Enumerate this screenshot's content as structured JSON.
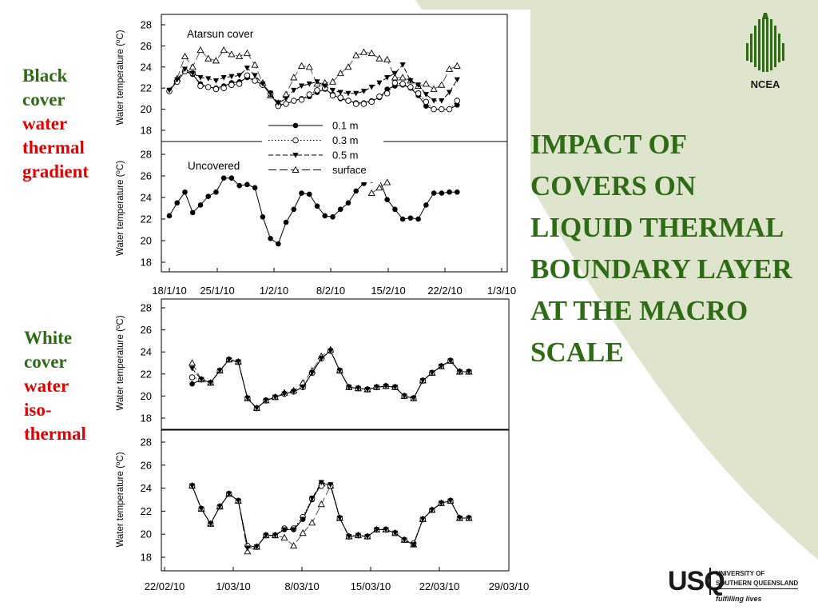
{
  "slide": {
    "title": "IMPACT OF COVERS ON LIQUID THERMAL BOUNDARY LAYER AT THE MACRO SCALE",
    "colors": {
      "title": "#2e6b15",
      "accent_red": "#e00000",
      "bg_green": "#dfe5cc"
    }
  },
  "labels": {
    "black": [
      {
        "text": "Black",
        "color": "green"
      },
      {
        "text": "cover",
        "color": "green"
      },
      {
        "text": "water",
        "color": "red"
      },
      {
        "text": "thermal",
        "color": "red"
      },
      {
        "text": "gradient",
        "color": "red"
      }
    ],
    "white": [
      {
        "text": "White",
        "color": "green"
      },
      {
        "text": "cover",
        "color": "green"
      },
      {
        "text": "water",
        "color": "red"
      },
      {
        "text": "iso-",
        "color": "red"
      },
      {
        "text": "thermal",
        "color": "red"
      }
    ]
  },
  "logos": {
    "ncea": {
      "text": "NCEA",
      "icon": "tree-lines-icon"
    },
    "usq": {
      "mark": "USQ",
      "line1": "UNIVERSITY OF",
      "line2": "SOUTHERN QUEENSLAND",
      "tagline": "fulfilling lives"
    }
  },
  "legend": {
    "entries": [
      {
        "label": "0.1 m",
        "marker": "filled-circle",
        "dash": "solid"
      },
      {
        "label": "0.3 m",
        "marker": "open-circle",
        "dash": "dotted"
      },
      {
        "label": "0.5 m",
        "marker": "filled-triangle-down",
        "dash": "dashed"
      },
      {
        "label": "surface",
        "marker": "open-triangle-up",
        "dash": "longdash"
      }
    ]
  },
  "chart_data": [
    {
      "type": "line",
      "panel": "black-top",
      "annotation": "Atarsun cover",
      "ylabel": "Water temperature (oC)",
      "ylim": [
        18,
        28
      ],
      "yticks": [
        18,
        20,
        22,
        24,
        26,
        28
      ],
      "xlim": [
        "18/1/10",
        "1/3/10"
      ],
      "series": [
        {
          "name": "0.1 m",
          "x": [
            0,
            1,
            2,
            3,
            4,
            5,
            6,
            7,
            8,
            9,
            10,
            11,
            12,
            13,
            14,
            15,
            16,
            17,
            18,
            19,
            20,
            21,
            22,
            23,
            24,
            25,
            26,
            27,
            28,
            29,
            30,
            31,
            32,
            33,
            34,
            35,
            36,
            37
          ],
          "y": [
            21.8,
            22.6,
            23.6,
            23.3,
            22.4,
            22.1,
            22.0,
            22.2,
            22.5,
            22.6,
            23.0,
            22.7,
            22.3,
            21.4,
            20.4,
            20.5,
            20.8,
            21.0,
            21.2,
            21.6,
            21.9,
            21.4,
            21.0,
            20.8,
            20.6,
            20.6,
            20.8,
            21.1,
            21.9,
            22.2,
            22.3,
            22.0,
            21.3,
            20.3,
            20.0,
            20.0,
            20.0,
            20.4
          ]
        },
        {
          "name": "0.3 m",
          "x": [
            0,
            1,
            2,
            3,
            4,
            5,
            6,
            7,
            8,
            9,
            10,
            11,
            12,
            13,
            14,
            15,
            16,
            17,
            18,
            19,
            20,
            21,
            22,
            23,
            24,
            25,
            26,
            27,
            28,
            29,
            30,
            31,
            32,
            33,
            34,
            35,
            36,
            37
          ],
          "y": [
            21.7,
            22.6,
            23.6,
            23.4,
            22.2,
            22.1,
            21.9,
            22.0,
            22.3,
            22.4,
            23.2,
            22.7,
            22.3,
            21.5,
            20.3,
            20.5,
            20.8,
            20.9,
            21.4,
            21.8,
            22.0,
            21.3,
            21.1,
            20.8,
            20.5,
            20.5,
            20.7,
            21.2,
            21.5,
            22.5,
            22.4,
            22.1,
            21.5,
            20.7,
            20.0,
            20.0,
            20.0,
            20.8
          ]
        },
        {
          "name": "0.5 m",
          "x": [
            0,
            1,
            2,
            3,
            4,
            5,
            6,
            7,
            8,
            9,
            10,
            11,
            12,
            13,
            14,
            15,
            16,
            17,
            18,
            19,
            20,
            21,
            22,
            23,
            24,
            25,
            26,
            27,
            28,
            29,
            30,
            31,
            32,
            33,
            34,
            35,
            36,
            37
          ],
          "y": [
            21.8,
            22.8,
            23.8,
            23.4,
            23.0,
            22.9,
            22.7,
            23.0,
            23.1,
            23.2,
            23.9,
            23.2,
            22.4,
            21.5,
            20.6,
            21.0,
            21.8,
            22.2,
            22.4,
            22.6,
            22.2,
            21.8,
            21.6,
            21.5,
            21.5,
            21.7,
            22.1,
            22.5,
            23.0,
            23.4,
            24.2,
            22.7,
            22.3,
            21.4,
            20.8,
            20.8,
            21.6,
            22.8
          ]
        },
        {
          "name": "surface",
          "x": [
            1,
            2,
            3,
            4,
            5,
            6,
            7,
            8,
            9,
            10,
            11,
            12,
            13,
            14,
            15,
            16,
            17,
            18,
            19,
            20,
            21,
            22,
            23,
            24,
            25,
            26,
            27,
            28,
            29,
            30,
            31,
            32,
            33,
            34,
            35,
            36,
            37
          ],
          "y": [
            22.9,
            25.0,
            24.0,
            25.6,
            24.8,
            24.6,
            25.6,
            25.2,
            25.0,
            25.3,
            24.2,
            22.5,
            21.3,
            20.6,
            21.4,
            23.0,
            24.1,
            24.0,
            22.4,
            22.5,
            22.6,
            23.4,
            24.0,
            25.1,
            25.4,
            25.3,
            24.8,
            24.7,
            23.0,
            23.0,
            22.7,
            22.2,
            22.4,
            21.9,
            22.3,
            23.8,
            24.1
          ]
        }
      ]
    },
    {
      "type": "line",
      "panel": "black-bottom",
      "annotation": "Uncovered",
      "ylabel": "Water temperature (oC)",
      "ylim": [
        18,
        28
      ],
      "yticks": [
        18,
        20,
        22,
        24,
        26,
        28
      ],
      "xlim": [
        "18/1/10",
        "1/3/10"
      ],
      "xticks": [
        "18/1/10",
        "25/1/10",
        "1/2/10",
        "8/2/10",
        "15/2/10",
        "22/2/10",
        "1/3/10"
      ],
      "series": [
        {
          "name": "all depths",
          "x": [
            0,
            1,
            2,
            3,
            4,
            5,
            6,
            7,
            8,
            9,
            10,
            11,
            12,
            13,
            14,
            15,
            16,
            17,
            18,
            19,
            20,
            21,
            22,
            23,
            24,
            25,
            26,
            27,
            28,
            29,
            30,
            31,
            32,
            33,
            34,
            35,
            36,
            37
          ],
          "y": [
            22.3,
            23.5,
            24.5,
            22.6,
            23.3,
            24.1,
            24.5,
            25.8,
            25.8,
            25.1,
            25.2,
            24.9,
            22.2,
            20.2,
            19.7,
            21.7,
            22.9,
            24.4,
            24.3,
            23.2,
            22.3,
            22.2,
            22.9,
            23.5,
            24.6,
            25.3,
            25.6,
            25.7,
            23.8,
            22.9,
            22.0,
            22.1,
            22.0,
            23.3,
            24.4,
            24.4,
            24.5,
            24.5
          ]
        },
        {
          "name": "surface",
          "x": [
            26,
            27,
            28
          ],
          "y": [
            24.4,
            24.9,
            25.4
          ]
        }
      ]
    },
    {
      "type": "line",
      "panel": "white-top",
      "ylabel": "Water temperature (oC)",
      "ylim": [
        18,
        28
      ],
      "yticks": [
        18,
        20,
        22,
        24,
        26,
        28
      ],
      "xlim": [
        "22/02/10",
        "29/03/10"
      ],
      "series": [
        {
          "name": "0.1 m",
          "x": [
            1,
            2,
            3,
            4,
            5,
            6,
            7,
            8,
            9,
            10,
            11,
            12,
            13,
            14,
            15,
            16,
            17,
            18,
            19,
            20,
            21,
            22,
            23,
            24,
            25,
            26,
            27,
            28,
            29,
            30,
            31
          ],
          "y": [
            21.1,
            21.5,
            21.2,
            22.3,
            23.3,
            23.1,
            19.8,
            18.9,
            19.6,
            19.9,
            20.2,
            20.4,
            20.8,
            22.1,
            23.4,
            24.1,
            22.3,
            20.8,
            20.7,
            20.6,
            20.8,
            20.9,
            20.8,
            20.0,
            19.8,
            21.4,
            22.1,
            22.7,
            23.2,
            22.2,
            22.2
          ]
        },
        {
          "name": "0.3 m",
          "x": [
            1,
            2,
            3,
            4,
            5,
            6,
            7,
            8,
            9,
            10,
            11,
            12,
            13,
            14,
            15,
            16,
            17,
            18,
            19,
            20,
            21,
            22,
            23,
            24,
            25,
            26,
            27,
            28,
            29,
            30,
            31
          ],
          "y": [
            21.7,
            21.5,
            21.2,
            22.3,
            23.3,
            23.1,
            19.8,
            18.9,
            19.6,
            19.9,
            20.2,
            20.4,
            20.8,
            22.1,
            23.4,
            24.1,
            22.3,
            20.8,
            20.7,
            20.6,
            20.8,
            20.9,
            20.8,
            20.0,
            19.8,
            21.4,
            22.1,
            22.7,
            23.2,
            22.2,
            22.2
          ]
        },
        {
          "name": "0.5 m",
          "x": [
            1,
            2,
            3,
            4,
            5,
            6,
            7,
            8,
            9,
            10,
            11,
            12,
            13,
            14,
            15,
            16,
            17,
            18,
            19,
            20,
            21,
            22,
            23,
            24,
            25,
            26,
            27,
            28,
            29,
            30,
            31
          ],
          "y": [
            22.5,
            21.5,
            21.2,
            22.3,
            23.3,
            23.1,
            19.8,
            18.9,
            19.6,
            19.9,
            20.2,
            20.4,
            20.8,
            22.1,
            23.4,
            24.1,
            22.3,
            20.8,
            20.7,
            20.6,
            20.8,
            20.9,
            20.8,
            20.0,
            19.8,
            21.4,
            22.1,
            22.7,
            23.2,
            22.2,
            22.2
          ]
        },
        {
          "name": "surface",
          "x": [
            1,
            2,
            3,
            4,
            5,
            6,
            7,
            8,
            9,
            10,
            11,
            12,
            13,
            14,
            15,
            16,
            17,
            18,
            19,
            20,
            21,
            22,
            23,
            24,
            25,
            26,
            27,
            28,
            29,
            30,
            31
          ],
          "y": [
            23.0,
            21.5,
            21.2,
            22.3,
            23.3,
            23.1,
            19.8,
            18.9,
            19.6,
            19.9,
            20.3,
            20.5,
            21.2,
            22.3,
            23.6,
            24.2,
            22.3,
            20.8,
            20.7,
            20.6,
            20.8,
            20.9,
            20.8,
            20.0,
            19.8,
            21.4,
            22.1,
            22.7,
            23.2,
            22.2,
            22.2
          ]
        }
      ]
    },
    {
      "type": "line",
      "panel": "white-bottom",
      "ylabel": "Water temperature (oC)",
      "ylim": [
        18,
        28
      ],
      "yticks": [
        18,
        20,
        22,
        24,
        26,
        28
      ],
      "xlim": [
        "22/02/10",
        "29/03/10"
      ],
      "xticks": [
        "22/02/10",
        "1/03/10",
        "8/03/10",
        "15/03/10",
        "22/03/10",
        "29/03/10"
      ],
      "series": [
        {
          "name": "0.1 m",
          "x": [
            1,
            2,
            3,
            4,
            5,
            6,
            7,
            8,
            9,
            10,
            11,
            12,
            13,
            14,
            15,
            16,
            17,
            18,
            19,
            20,
            21,
            22,
            23,
            24,
            25,
            26,
            27,
            28,
            29,
            30,
            31
          ],
          "y": [
            24.2,
            22.2,
            20.9,
            22.4,
            23.5,
            22.9,
            19.0,
            18.9,
            19.9,
            19.9,
            20.4,
            20.4,
            21.3,
            23.0,
            24.4,
            24.3,
            21.4,
            19.8,
            19.9,
            19.8,
            20.4,
            20.4,
            20.1,
            19.5,
            19.1,
            21.3,
            22.1,
            22.7,
            22.9,
            21.4,
            21.4
          ]
        },
        {
          "name": "0.3 m",
          "x": [
            1,
            2,
            3,
            4,
            5,
            6,
            7,
            8,
            9,
            10,
            11,
            12,
            13,
            14,
            15,
            16,
            17,
            18,
            19,
            20,
            21,
            22,
            23,
            24,
            25,
            26,
            27,
            28,
            29,
            30,
            31
          ],
          "y": [
            24.2,
            22.2,
            20.9,
            22.4,
            23.5,
            22.9,
            19.0,
            18.9,
            19.9,
            19.9,
            20.5,
            20.5,
            21.5,
            23.1,
            24.2,
            24.2,
            21.4,
            19.8,
            19.9,
            19.8,
            20.4,
            20.4,
            20.1,
            19.5,
            19.2,
            21.3,
            22.1,
            22.7,
            22.9,
            21.4,
            21.4
          ]
        },
        {
          "name": "0.5 m",
          "x": [
            1,
            2,
            3,
            4,
            5,
            6,
            7,
            8,
            9,
            10,
            11,
            12,
            13,
            14,
            15,
            16,
            17,
            18,
            19,
            20,
            21,
            22,
            23,
            24,
            25,
            26,
            27,
            28,
            29,
            30,
            31
          ],
          "y": [
            24.2,
            22.2,
            20.9,
            22.4,
            23.5,
            22.9,
            18.8,
            18.9,
            19.9,
            19.9,
            20.4,
            20.4,
            21.3,
            23.1,
            24.5,
            24.3,
            21.4,
            19.8,
            19.9,
            19.8,
            20.4,
            20.4,
            20.1,
            19.5,
            19.1,
            21.3,
            22.1,
            22.7,
            22.9,
            21.4,
            21.4
          ]
        },
        {
          "name": "surface",
          "x": [
            1,
            2,
            3,
            4,
            5,
            6,
            7,
            8,
            9,
            10,
            11,
            12,
            13,
            14,
            15,
            16,
            17,
            18,
            19,
            20,
            21,
            22,
            23,
            24,
            25,
            26,
            27,
            28,
            29,
            30,
            31
          ],
          "y": [
            24.2,
            22.2,
            20.9,
            22.4,
            23.5,
            22.9,
            18.5,
            18.9,
            19.9,
            19.9,
            19.7,
            19.0,
            20.1,
            21.0,
            22.6,
            24.2,
            21.4,
            19.8,
            19.9,
            19.8,
            20.4,
            20.4,
            20.1,
            19.5,
            19.1,
            21.3,
            22.1,
            22.7,
            22.9,
            21.4,
            21.4
          ]
        }
      ]
    }
  ]
}
